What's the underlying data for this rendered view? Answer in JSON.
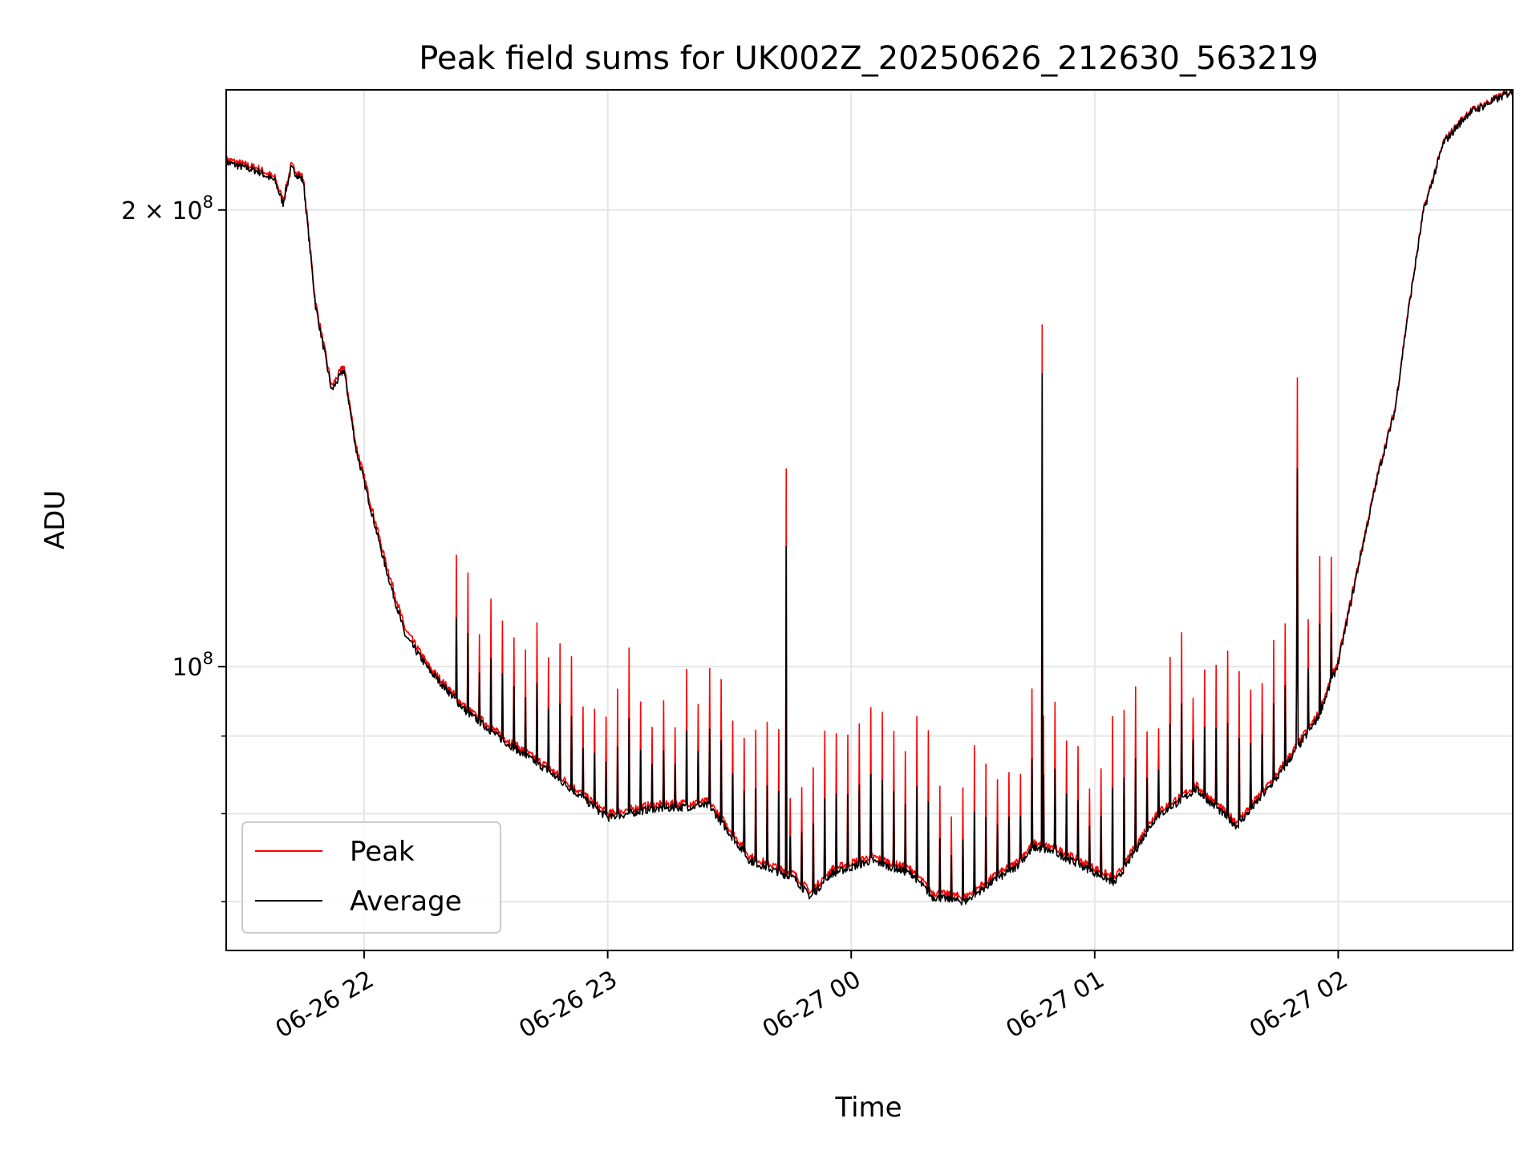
{
  "chart_data": {
    "type": "line",
    "title": "Peak field sums for UK002Z_20250626_212630_563219",
    "xlabel": "Time",
    "ylabel": "ADU",
    "y_scale": "log",
    "ylim": [
      65000000,
      240000000
    ],
    "xlim": [
      "2025-06-26 21:26",
      "2025-06-27 02:43"
    ],
    "x_ticks": [
      {
        "label": "06-26 22",
        "value": "2025-06-26 22:00"
      },
      {
        "label": "06-26 23",
        "value": "2025-06-26 23:00"
      },
      {
        "label": "06-27 00",
        "value": "2025-06-27 00:00"
      },
      {
        "label": "06-27 01",
        "value": "2025-06-27 01:00"
      },
      {
        "label": "06-27 02",
        "value": "2025-06-27 02:00"
      }
    ],
    "y_ticks_major": [
      {
        "prefix": "2 × 10",
        "exp": "8",
        "value": 200000000
      },
      {
        "prefix": "10",
        "exp": "8",
        "value": 100000000
      }
    ],
    "y_ticks_minor": [
      70000000,
      80000000,
      90000000,
      300000000
    ],
    "grid": true,
    "legend_position": "lower-left",
    "series": [
      {
        "name": "Peak",
        "color": "#ff0000",
        "x": [
          "2025-06-26 21:26",
          "2025-06-26 21:34",
          "2025-06-26 21:38",
          "2025-06-26 21:40",
          "2025-06-26 21:42",
          "2025-06-26 21:45",
          "2025-06-26 21:48",
          "2025-06-26 21:52",
          "2025-06-26 21:55",
          "2025-06-26 21:58",
          "2025-06-26 22:05",
          "2025-06-26 22:10",
          "2025-06-26 22:16",
          "2025-06-26 22:25",
          "2025-06-26 22:34",
          "2025-06-26 22:45",
          "2025-06-26 23:00",
          "2025-06-26 23:10",
          "2025-06-26 23:25",
          "2025-06-26 23:35",
          "2025-06-26 23:46",
          "2025-06-26 23:50",
          "2025-06-26 23:55",
          "2025-06-27 00:05",
          "2025-06-27 00:15",
          "2025-06-27 00:20",
          "2025-06-27 00:28",
          "2025-06-27 00:36",
          "2025-06-27 00:40",
          "2025-06-27 00:45",
          "2025-06-27 00:50",
          "2025-06-27 01:05",
          "2025-06-27 01:15",
          "2025-06-27 01:25",
          "2025-06-27 01:35",
          "2025-06-27 01:45",
          "2025-06-27 01:55",
          "2025-06-27 02:00",
          "2025-06-27 02:05",
          "2025-06-27 02:10",
          "2025-06-27 02:14",
          "2025-06-27 02:17",
          "2025-06-27 02:21",
          "2025-06-27 02:26",
          "2025-06-27 02:32",
          "2025-06-27 02:43"
        ],
        "y": [
          216000000,
          213000000,
          210000000,
          203000000,
          214000000,
          210000000,
          174000000,
          153000000,
          158000000,
          140000000,
          118000000,
          106000000,
          100000000,
          94000000,
          90000000,
          86000000,
          80000000,
          81000000,
          81500000,
          75000000,
          73000000,
          71000000,
          73500000,
          75000000,
          73500000,
          71000000,
          70500000,
          73000000,
          74000000,
          76500000,
          76000000,
          72500000,
          80000000,
          83500000,
          79000000,
          85000000,
          93000000,
          101000000,
          117000000,
          135000000,
          148000000,
          170000000,
          200000000,
          222000000,
          232000000,
          240000000
        ]
      },
      {
        "name": "Average",
        "color": "#000000",
        "x": [
          "2025-06-26 21:26",
          "2025-06-26 21:34",
          "2025-06-26 21:38",
          "2025-06-26 21:40",
          "2025-06-26 21:42",
          "2025-06-26 21:45",
          "2025-06-26 21:48",
          "2025-06-26 21:52",
          "2025-06-26 21:55",
          "2025-06-26 21:58",
          "2025-06-26 22:05",
          "2025-06-26 22:10",
          "2025-06-26 22:16",
          "2025-06-26 22:25",
          "2025-06-26 22:34",
          "2025-06-26 22:45",
          "2025-06-26 23:00",
          "2025-06-26 23:10",
          "2025-06-26 23:25",
          "2025-06-26 23:35",
          "2025-06-26 23:46",
          "2025-06-26 23:50",
          "2025-06-26 23:55",
          "2025-06-27 00:05",
          "2025-06-27 00:15",
          "2025-06-27 00:20",
          "2025-06-27 00:28",
          "2025-06-27 00:36",
          "2025-06-27 00:40",
          "2025-06-27 00:45",
          "2025-06-27 00:50",
          "2025-06-27 01:05",
          "2025-06-27 01:15",
          "2025-06-27 01:25",
          "2025-06-27 01:35",
          "2025-06-27 01:45",
          "2025-06-27 01:55",
          "2025-06-27 02:00",
          "2025-06-27 02:05",
          "2025-06-27 02:10",
          "2025-06-27 02:14",
          "2025-06-27 02:17",
          "2025-06-27 02:21",
          "2025-06-27 02:26",
          "2025-06-27 02:32",
          "2025-06-27 02:43"
        ],
        "y": [
          215000000,
          212000000,
          209000000,
          202000000,
          213000000,
          209000000,
          173000000,
          152000000,
          157000000,
          139000000,
          117000000,
          105000000,
          99500000,
          93500000,
          89500000,
          85500000,
          79500000,
          80500000,
          81000000,
          74500000,
          72500000,
          70500000,
          73000000,
          74500000,
          73000000,
          70500000,
          70000000,
          72500000,
          73500000,
          76000000,
          75500000,
          72000000,
          79500000,
          83000000,
          78500000,
          84500000,
          92500000,
          100500000,
          116500000,
          134500000,
          147500000,
          169500000,
          199500000,
          221500000,
          231500000,
          239500000
        ]
      }
    ],
    "spikes": [
      {
        "x": "2025-06-26 23:44",
        "peak": 135000000,
        "average": 120000000
      },
      {
        "x": "2025-06-27 00:47",
        "peak": 168000000,
        "average": 156000000
      },
      {
        "x": "2025-06-27 01:50",
        "peak": 155000000,
        "average": 135000000
      }
    ]
  }
}
